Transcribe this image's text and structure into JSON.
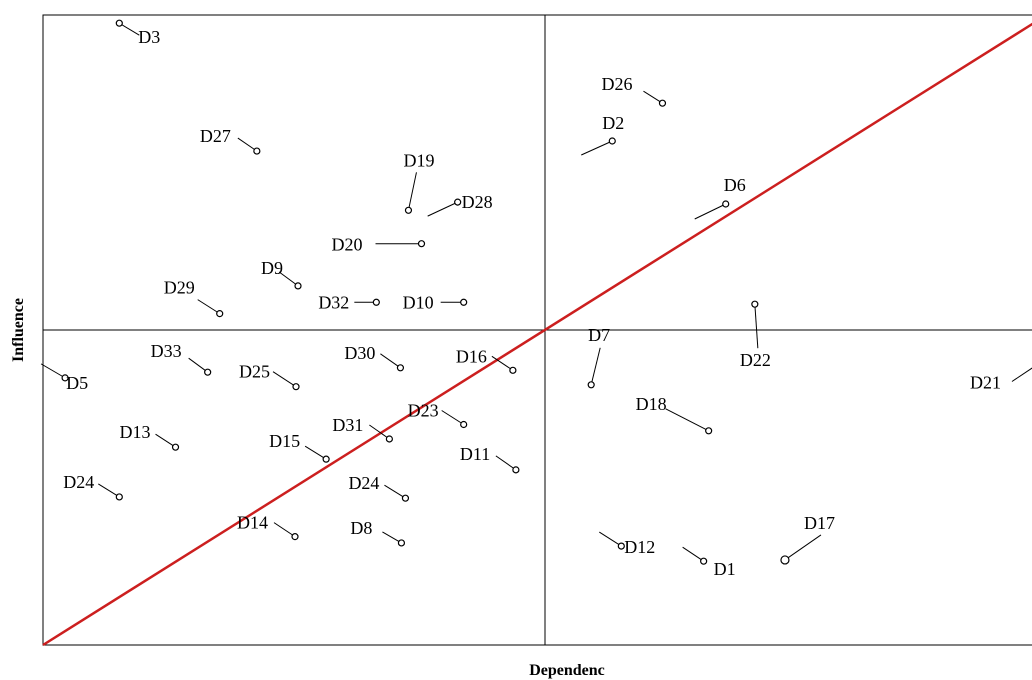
{
  "chart_data": {
    "type": "scatter",
    "title": "",
    "xlabel": "Dependenc",
    "ylabel": "Influence",
    "xlim": [
      0,
      1
    ],
    "ylim": [
      0,
      1
    ],
    "grid": false,
    "legend": "none",
    "colors": {
      "diagonal": "#cc1f1f",
      "axes": "#000000",
      "points": "#000000"
    },
    "quadrant_dividers": {
      "x": 0.5,
      "y": 0.5
    },
    "diagonal": {
      "from": [
        0,
        0
      ],
      "to": [
        1,
        1
      ]
    },
    "points": [
      {
        "label": "D3",
        "x": 0.076,
        "y": 0.987
      },
      {
        "label": "D26",
        "x": 0.617,
        "y": 0.86
      },
      {
        "label": "D2",
        "x": 0.567,
        "y": 0.8
      },
      {
        "label": "D27",
        "x": 0.213,
        "y": 0.784
      },
      {
        "label": "D19",
        "x": 0.364,
        "y": 0.69
      },
      {
        "label": "D28",
        "x": 0.413,
        "y": 0.703
      },
      {
        "label": "D6",
        "x": 0.68,
        "y": 0.7
      },
      {
        "label": "D20",
        "x": 0.377,
        "y": 0.637
      },
      {
        "label": "D9",
        "x": 0.254,
        "y": 0.57
      },
      {
        "label": "D29",
        "x": 0.176,
        "y": 0.526
      },
      {
        "label": "D32",
        "x": 0.332,
        "y": 0.544
      },
      {
        "label": "D10",
        "x": 0.419,
        "y": 0.544
      },
      {
        "label": "D22",
        "x": 0.709,
        "y": 0.541
      },
      {
        "label": "D7",
        "x": 0.546,
        "y": 0.413
      },
      {
        "label": "D5",
        "x": 0.022,
        "y": 0.424
      },
      {
        "label": "D33",
        "x": 0.164,
        "y": 0.433
      },
      {
        "label": "D25",
        "x": 0.252,
        "y": 0.41
      },
      {
        "label": "D30",
        "x": 0.356,
        "y": 0.44
      },
      {
        "label": "D16",
        "x": 0.468,
        "y": 0.436
      },
      {
        "label": "D21",
        "x": 0.995,
        "y": 0.45
      },
      {
        "label": "D18",
        "x": 0.663,
        "y": 0.34
      },
      {
        "label": "D23",
        "x": 0.419,
        "y": 0.35
      },
      {
        "label": "D13",
        "x": 0.132,
        "y": 0.314
      },
      {
        "label": "D31",
        "x": 0.345,
        "y": 0.327
      },
      {
        "label": "D15",
        "x": 0.282,
        "y": 0.295
      },
      {
        "label": "D11",
        "x": 0.471,
        "y": 0.278
      },
      {
        "label": "D24",
        "x": 0.076,
        "y": 0.235
      },
      {
        "label": "D24",
        "x": 0.361,
        "y": 0.233
      },
      {
        "label": "D14",
        "x": 0.251,
        "y": 0.172
      },
      {
        "label": "D8",
        "x": 0.357,
        "y": 0.162
      },
      {
        "label": "D12",
        "x": 0.576,
        "y": 0.157
      },
      {
        "label": "D1",
        "x": 0.658,
        "y": 0.133
      },
      {
        "label": "D17",
        "x": 0.739,
        "y": 0.135
      }
    ]
  }
}
